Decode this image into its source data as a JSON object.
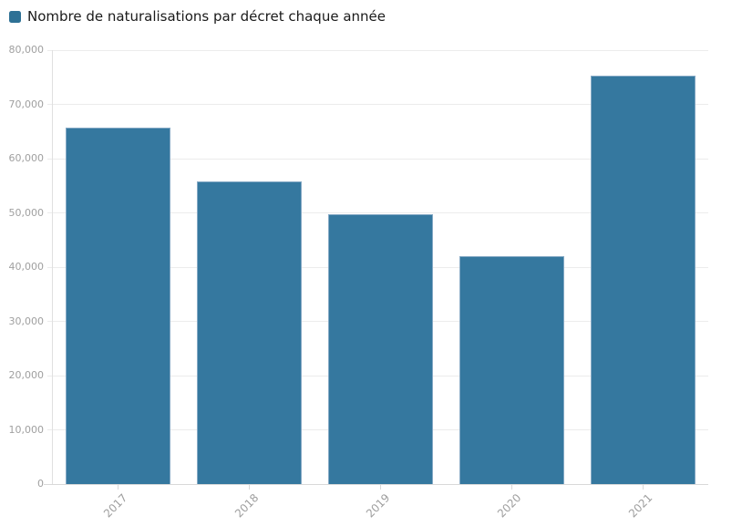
{
  "legend": {
    "label": "Nombre de naturalisations par décret chaque année"
  },
  "chart_data": {
    "type": "bar",
    "title": "",
    "xlabel": "",
    "ylabel": "",
    "categories": [
      "2017",
      "2018",
      "2019",
      "2020",
      "2021"
    ],
    "values": [
      65700,
      55800,
      49700,
      42000,
      75300
    ],
    "series_name": "Nombre de naturalisations par décret chaque année",
    "ylim": [
      0,
      80000
    ],
    "ytick_step": 10000,
    "ytick_labels": [
      "0",
      "10,000",
      "20,000",
      "30,000",
      "40,000",
      "50,000",
      "60,000",
      "70,000",
      "80,000"
    ],
    "grid": true,
    "legend_position": "top-left",
    "colors": {
      "bar": "#35789f",
      "bar_border": "#85a9c5",
      "legend_swatch": "#2e7195",
      "axis_text": "#9e9e9e",
      "ytick_text": "#a0a0a0",
      "gridline": "#ececec",
      "axis_line": "#d9d9d9",
      "title_text": "#1a1a1a"
    }
  }
}
